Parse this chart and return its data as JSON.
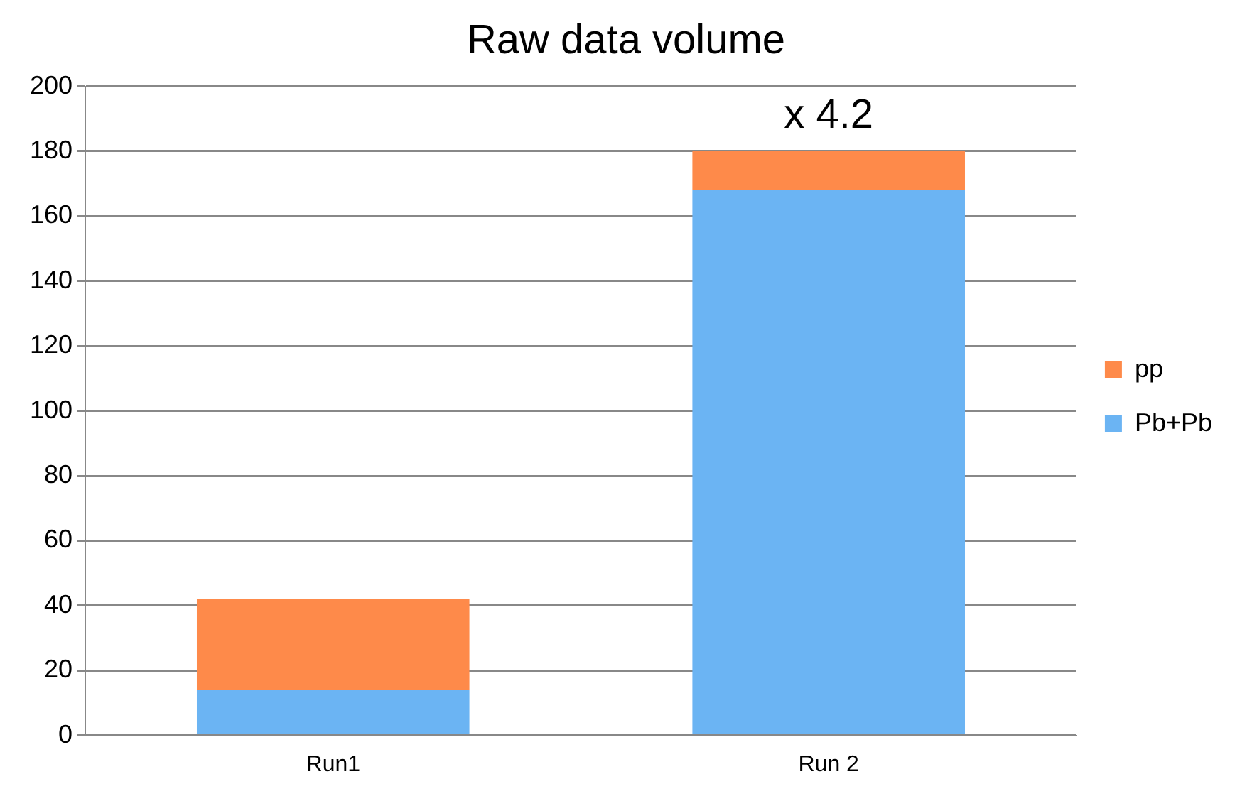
{
  "chart_data": {
    "type": "bar",
    "title": "Raw data volume",
    "categories": [
      "Run1",
      "Run 2"
    ],
    "stacked": true,
    "series": [
      {
        "name": "Pb+Pb",
        "color": "#6bb4f3",
        "values": [
          14,
          168
        ]
      },
      {
        "name": "pp",
        "color": "#fe8a4a",
        "values": [
          28,
          12
        ]
      }
    ],
    "ylim": [
      0,
      200
    ],
    "yticks": [
      0,
      20,
      40,
      60,
      80,
      100,
      120,
      140,
      160,
      180,
      200
    ],
    "grid": "y",
    "legend": "right",
    "annotations": [
      {
        "text": "x 4.2",
        "x": "Run 2",
        "y": 180
      }
    ]
  }
}
